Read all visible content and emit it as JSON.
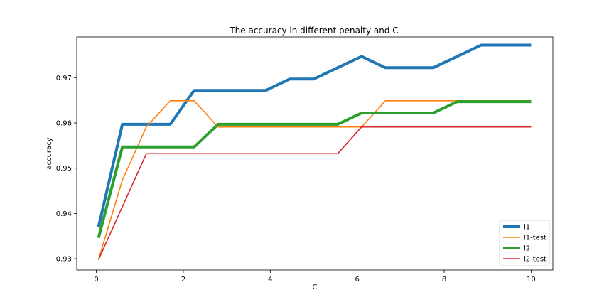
{
  "chart_data": {
    "type": "line",
    "title": "The accuracy in different penalty and C",
    "xlabel": "C",
    "ylabel": "accuracy",
    "xlim": [
      -0.45,
      10.5
    ],
    "ylim": [
      0.9275,
      0.979
    ],
    "xticks": [
      0,
      2,
      4,
      6,
      8,
      10
    ],
    "xtick_labels": [
      "0",
      "2",
      "4",
      "6",
      "8",
      "10"
    ],
    "yticks": [
      0.93,
      0.94,
      0.95,
      0.96,
      0.97
    ],
    "ytick_labels": [
      "0.93",
      "0.94",
      "0.95",
      "0.96",
      "0.97"
    ],
    "grid": false,
    "legend_position": "bottom-right",
    "x": [
      0.05,
      0.6,
      1.15,
      1.7,
      2.25,
      2.8,
      3.35,
      3.9,
      4.45,
      5.0,
      5.55,
      6.1,
      6.65,
      7.2,
      7.75,
      8.3,
      8.85,
      9.4,
      10.0
    ],
    "series": [
      {
        "name": "l1",
        "color": "#1f77b4",
        "width": 4,
        "values": [
          0.937,
          0.9597,
          0.9597,
          0.9597,
          0.9672,
          0.9672,
          0.9672,
          0.9672,
          0.9697,
          0.9697,
          0.9722,
          0.9747,
          0.9722,
          0.9722,
          0.9722,
          0.9747,
          0.9772,
          0.9772,
          0.9772
        ]
      },
      {
        "name": "l1-test",
        "color": "#ff7f0e",
        "width": 1.6,
        "values": [
          0.9298,
          0.9474,
          0.9591,
          0.9649,
          0.9649,
          0.9591,
          0.9591,
          0.9591,
          0.9591,
          0.9591,
          0.9591,
          0.9591,
          0.9649,
          0.9649,
          0.9649,
          0.9649,
          0.9649,
          0.9649,
          0.9649
        ]
      },
      {
        "name": "l2",
        "color": "#2ca02c",
        "width": 4,
        "values": [
          0.9346,
          0.9547,
          0.9547,
          0.9547,
          0.9547,
          0.9597,
          0.9597,
          0.9597,
          0.9597,
          0.9597,
          0.9597,
          0.9622,
          0.9622,
          0.9622,
          0.9622,
          0.9647,
          0.9647,
          0.9647,
          0.9647
        ]
      },
      {
        "name": "l2-test",
        "color": "#d62728",
        "width": 1.6,
        "values": [
          0.9298,
          0.9415,
          0.9532,
          0.9532,
          0.9532,
          0.9532,
          0.9532,
          0.9532,
          0.9532,
          0.9532,
          0.9532,
          0.9591,
          0.9591,
          0.9591,
          0.9591,
          0.9591,
          0.9591,
          0.9591,
          0.9591
        ]
      }
    ]
  }
}
